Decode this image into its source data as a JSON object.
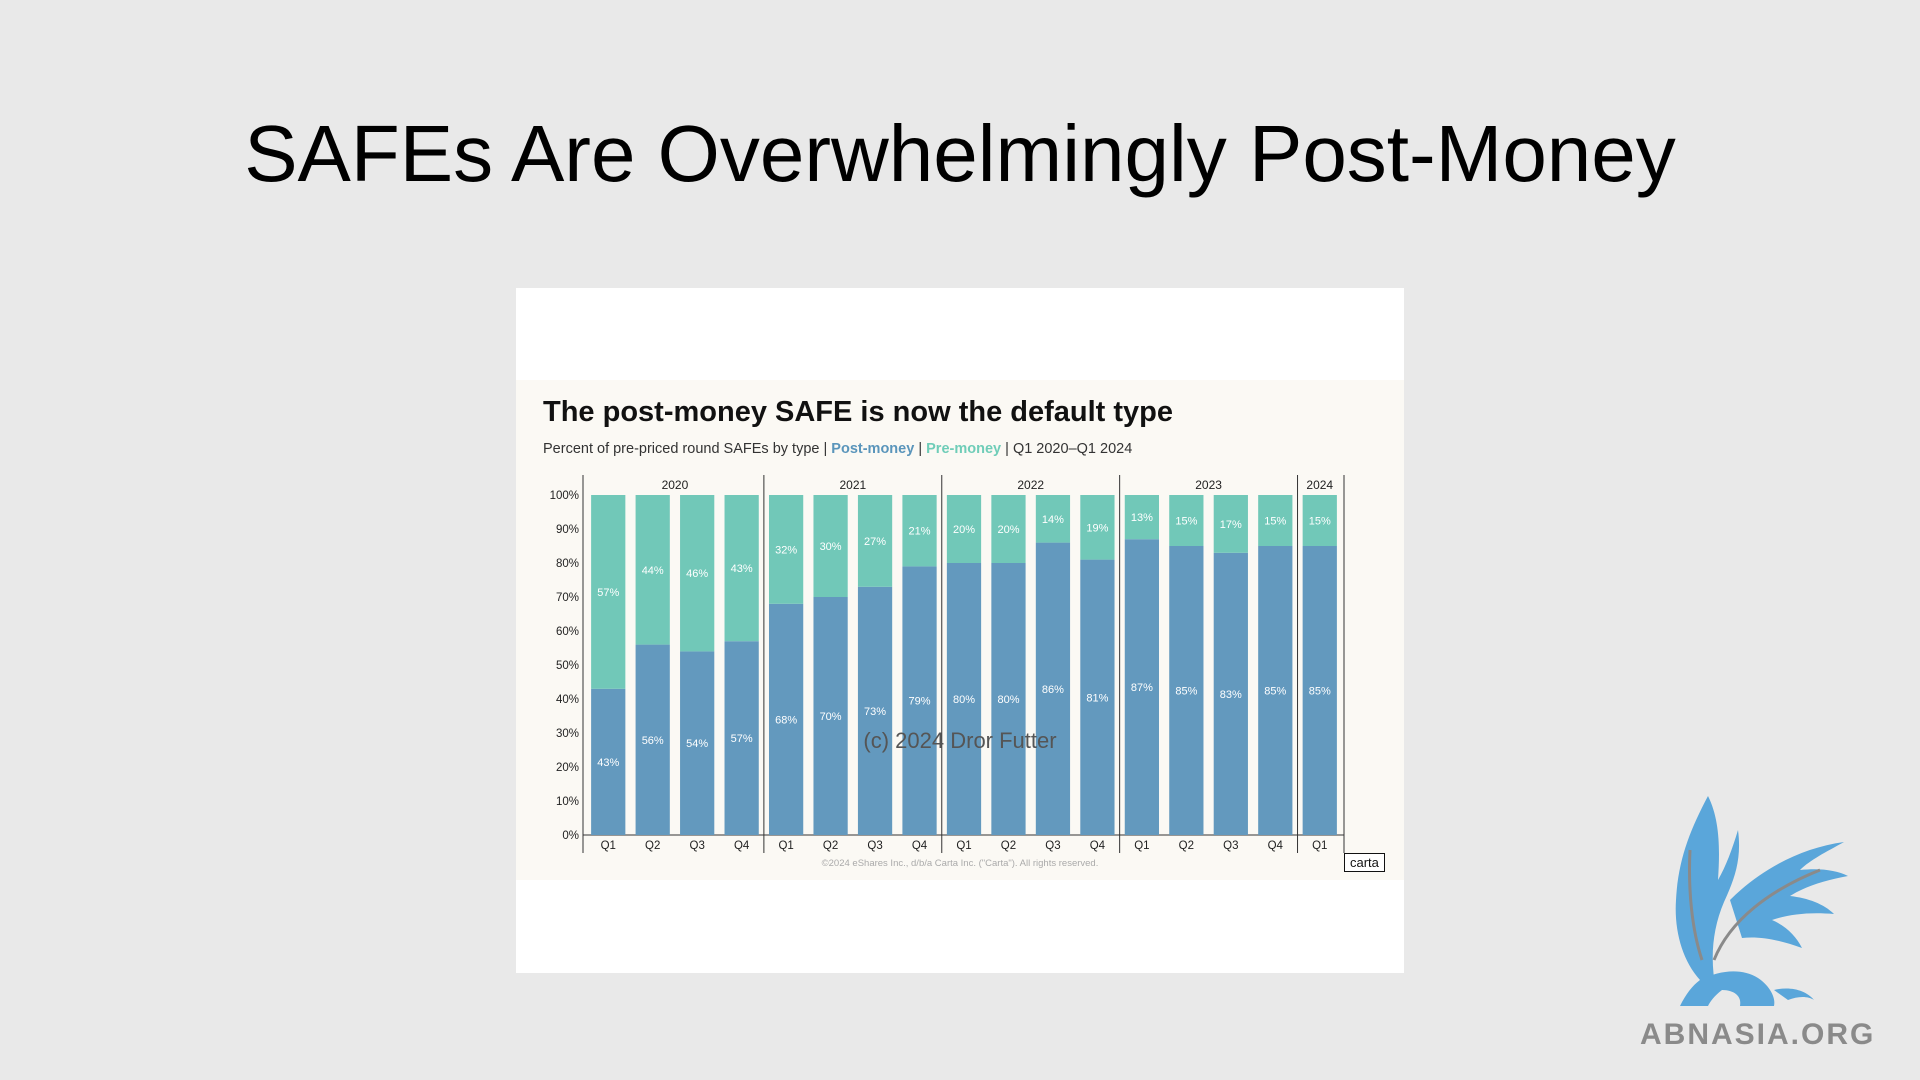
{
  "slide": {
    "title": "SAFEs Are Overwhelmingly Post-Money",
    "footer": "(c) 2024 Dror Futter"
  },
  "watermark": {
    "text": "ABNASIA.ORG"
  },
  "chart_data": {
    "type": "bar",
    "title": "The post-money SAFE is now the default type",
    "subtitle_prefix": "Percent of pre-priced round SAFEs by type",
    "subtitle_separator": "|",
    "subtitle_range": "Q1 2020–Q1 2024",
    "stacked": true,
    "years": [
      "2020",
      "2021",
      "2022",
      "2023",
      "2024"
    ],
    "year_spans": [
      4,
      4,
      4,
      4,
      1
    ],
    "categories": [
      "Q1",
      "Q2",
      "Q3",
      "Q4",
      "Q1",
      "Q2",
      "Q3",
      "Q4",
      "Q1",
      "Q2",
      "Q3",
      "Q4",
      "Q1",
      "Q2",
      "Q3",
      "Q4",
      "Q1"
    ],
    "series": [
      {
        "name": "Post-money",
        "color": "#6399be",
        "values": [
          43,
          56,
          54,
          57,
          68,
          70,
          73,
          79,
          80,
          80,
          86,
          81,
          87,
          85,
          83,
          85,
          85
        ],
        "labels": [
          "43%",
          "56%",
          "54%",
          "57%",
          "68%",
          "70%",
          "73%",
          "79%",
          "80%",
          "80%",
          "86%",
          "81%",
          "87%",
          "85%",
          "83%",
          "85%",
          "85%"
        ]
      },
      {
        "name": "Pre-money",
        "color": "#71c8b8",
        "values": [
          57,
          44,
          46,
          43,
          32,
          30,
          27,
          21,
          20,
          20,
          14,
          19,
          13,
          15,
          17,
          15,
          15
        ],
        "labels": [
          "57%",
          "44%",
          "46%",
          "43%",
          "32%",
          "30%",
          "27%",
          "21%",
          "20%",
          "20%",
          "14%",
          "19%",
          "13%",
          "15%",
          "17%",
          "15%",
          "15%"
        ]
      }
    ],
    "yticks": [
      "0%",
      "10%",
      "20%",
      "30%",
      "40%",
      "50%",
      "60%",
      "70%",
      "80%",
      "90%",
      "100%"
    ],
    "ylim": [
      0,
      100
    ],
    "source": "©2024 eShares Inc., d/b/a Carta Inc. (\"Carta\"). All rights reserved.",
    "brand": "carta"
  }
}
